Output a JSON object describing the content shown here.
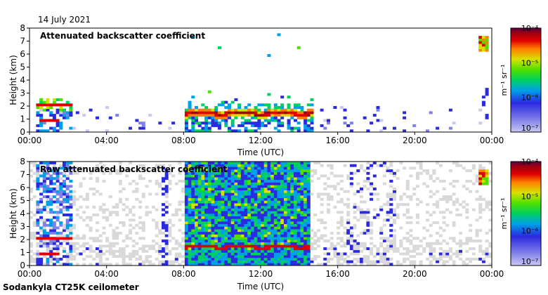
{
  "date": "14 July 2021",
  "footer": "Sodankyla CT25K ceilometer",
  "colorbar_unit": "m⁻¹ sr⁻¹",
  "colors": {
    "palette": [
      "#e8e8e8",
      "#c9c9f2",
      "#8080ea",
      "#2a2ae0",
      "#00a0e8",
      "#00d060",
      "#50e000",
      "#d8e000",
      "#ff8000",
      "#e00000",
      "#a00010",
      "#5a0040"
    ],
    "bg_gray": "#d9d9d9"
  },
  "chart_data": [
    {
      "type": "heatmap",
      "title": "Attenuated backscatter coefficient",
      "xlabel": "Time (UTC)",
      "ylabel": "Height (km)",
      "xlim": [
        0,
        24
      ],
      "ylim": [
        0,
        8
      ],
      "xticks": [
        "00:00",
        "04:00",
        "08:00",
        "12:00",
        "16:00",
        "20:00",
        "00:00"
      ],
      "yticks": [
        "0",
        "1",
        "2",
        "3",
        "4",
        "5",
        "6",
        "7",
        "8"
      ],
      "colorbar": {
        "scale": "log",
        "min": 1e-07,
        "max": 0.0001,
        "ticks": [
          "10⁻⁴",
          "10⁻⁵",
          "10⁻⁶",
          "10⁻⁷"
        ]
      },
      "features": [
        {
          "name": "night layer",
          "t": [
            0.3,
            2.2
          ],
          "height_km": 2.1,
          "intensity": "high"
        },
        {
          "name": "low layer",
          "t": [
            0.5,
            1.5
          ],
          "height_km": 1.0,
          "intensity": "high"
        },
        {
          "name": "boundary layer top",
          "t": [
            8.1,
            14.7
          ],
          "height_km": 1.45,
          "intensity": "high"
        },
        {
          "name": "high cloud",
          "t": [
            23.4,
            23.8
          ],
          "height_km": 6.8,
          "intensity": "high"
        }
      ]
    },
    {
      "type": "heatmap",
      "title": "Raw attenuated backscatter coefficient",
      "xlabel": "Time (UTC)",
      "ylabel": "Height (km)",
      "xlim": [
        0,
        24
      ],
      "ylim": [
        0,
        8
      ],
      "xticks": [
        "00:00",
        "04:00",
        "08:00",
        "12:00",
        "16:00",
        "20:00",
        "00:00"
      ],
      "yticks": [
        "0",
        "1",
        "2",
        "3",
        "4",
        "5",
        "6",
        "7",
        "8"
      ],
      "colorbar": {
        "scale": "log",
        "min": 1e-07,
        "max": 0.0001,
        "ticks": [
          "10⁻⁴",
          "10⁻⁵",
          "10⁻⁶",
          "10⁻⁷"
        ]
      },
      "features": [
        {
          "name": "night layer",
          "t": [
            0.3,
            2.2
          ],
          "height_km": 2.1,
          "intensity": "high"
        },
        {
          "name": "low layer",
          "t": [
            0.5,
            1.5
          ],
          "height_km": 1.0,
          "intensity": "high"
        },
        {
          "name": "boundary layer top",
          "t": [
            8.1,
            14.7
          ],
          "height_km": 1.45,
          "intensity": "high"
        },
        {
          "name": "noisy daytime signal",
          "t": [
            8.0,
            14.6
          ],
          "height_km": [
            0,
            8
          ],
          "intensity": "medium"
        },
        {
          "name": "high cloud",
          "t": [
            23.4,
            23.8
          ],
          "height_km": 6.8,
          "intensity": "high"
        }
      ]
    }
  ]
}
